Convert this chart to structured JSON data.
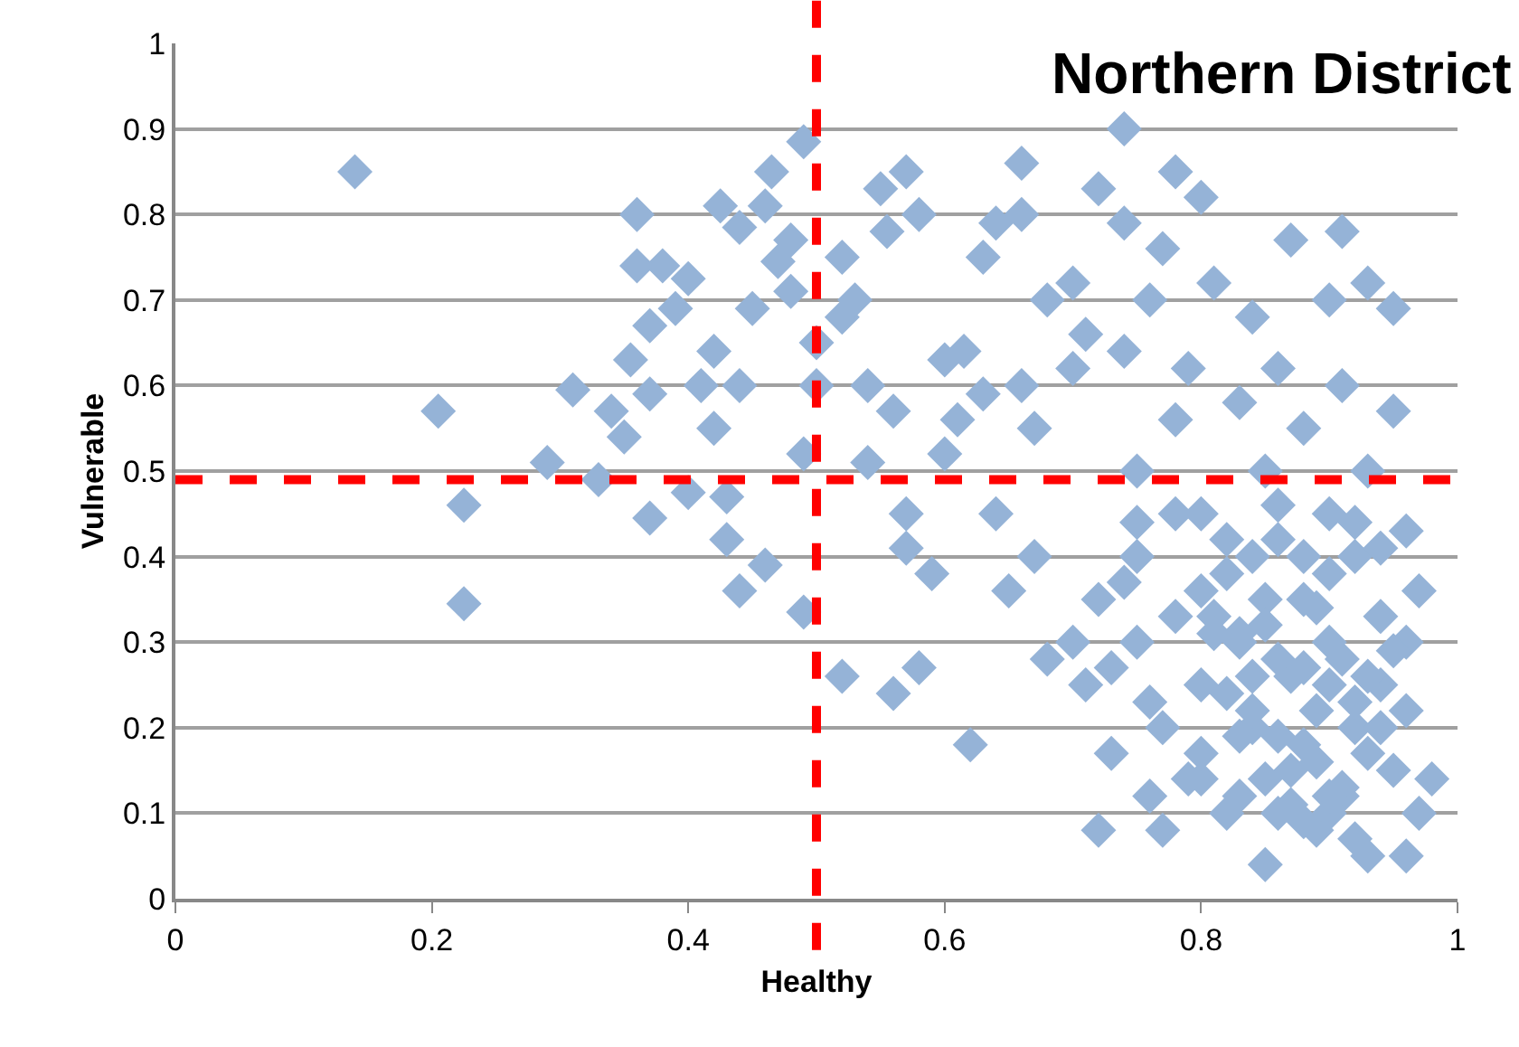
{
  "chart_data": {
    "type": "scatter",
    "title": "Northern District",
    "xlabel": "Healthy",
    "ylabel": "Vulnerable",
    "xlim": [
      0,
      1
    ],
    "ylim": [
      0,
      1
    ],
    "xticks": [
      0,
      0.2,
      0.4,
      0.6,
      0.8,
      1
    ],
    "yticks": [
      0,
      0.1,
      0.2,
      0.3,
      0.4,
      0.5,
      0.6,
      0.7,
      0.8,
      0.9,
      1
    ],
    "grid": "y",
    "marker": "diamond",
    "ref_lines": [
      {
        "axis": "x",
        "value": 0.5,
        "color": "#ff0000",
        "line_style": "dashed"
      },
      {
        "axis": "y",
        "value": 0.49,
        "color": "#ff0000",
        "line_style": "dashed"
      }
    ],
    "series": [
      {
        "color": "#95b3d7",
        "x": [
          0.14,
          0.205,
          0.225,
          0.225,
          0.29,
          0.31,
          0.33,
          0.34,
          0.35,
          0.355,
          0.36,
          0.36,
          0.37,
          0.37,
          0.37,
          0.38,
          0.39,
          0.4,
          0.4,
          0.41,
          0.42,
          0.42,
          0.425,
          0.43,
          0.43,
          0.44,
          0.44,
          0.44,
          0.45,
          0.46,
          0.46,
          0.465,
          0.47,
          0.48,
          0.48,
          0.49,
          0.49,
          0.49,
          0.5,
          0.5,
          0.52,
          0.52,
          0.52,
          0.53,
          0.54,
          0.54,
          0.55,
          0.555,
          0.56,
          0.56,
          0.57,
          0.57,
          0.57,
          0.58,
          0.58,
          0.59,
          0.6,
          0.6,
          0.61,
          0.615,
          0.62,
          0.63,
          0.63,
          0.64,
          0.64,
          0.65,
          0.66,
          0.66,
          0.66,
          0.67,
          0.67,
          0.68,
          0.68,
          0.7,
          0.7,
          0.7,
          0.71,
          0.71,
          0.72,
          0.72,
          0.73,
          0.74,
          0.74,
          0.74,
          0.75,
          0.75,
          0.75,
          0.76,
          0.76,
          0.77,
          0.77,
          0.78,
          0.78,
          0.78,
          0.79,
          0.8,
          0.8,
          0.8,
          0.8,
          0.81,
          0.82,
          0.82,
          0.83,
          0.83,
          0.84,
          0.84,
          0.85,
          0.85,
          0.86,
          0.86,
          0.86,
          0.87,
          0.87,
          0.88,
          0.88,
          0.89,
          0.89,
          0.9,
          0.9,
          0.9,
          0.91,
          0.91,
          0.91,
          0.92,
          0.92,
          0.93,
          0.93,
          0.93,
          0.94,
          0.94,
          0.95,
          0.95,
          0.95,
          0.96,
          0.96,
          0.96,
          0.97,
          0.97,
          0.98,
          0.96,
          0.85,
          0.78,
          0.83,
          0.88,
          0.9,
          0.8,
          0.76,
          0.82,
          0.84,
          0.86,
          0.88,
          0.9,
          0.92,
          0.94,
          0.81,
          0.83,
          0.85,
          0.87,
          0.89,
          0.91,
          0.93,
          0.95,
          0.82,
          0.84,
          0.86,
          0.88,
          0.9,
          0.92,
          0.94,
          0.8,
          0.83,
          0.85,
          0.87,
          0.89,
          0.91,
          0.93,
          0.79,
          0.81,
          0.84,
          0.86,
          0.88,
          0.9,
          0.92,
          0.77,
          0.74,
          0.72,
          0.73,
          0.75
        ],
        "values": [
          0.85,
          0.57,
          0.46,
          0.345,
          0.51,
          0.595,
          0.49,
          0.57,
          0.54,
          0.63,
          0.74,
          0.8,
          0.67,
          0.59,
          0.445,
          0.74,
          0.69,
          0.725,
          0.475,
          0.6,
          0.64,
          0.55,
          0.81,
          0.47,
          0.42,
          0.785,
          0.6,
          0.36,
          0.69,
          0.39,
          0.81,
          0.85,
          0.745,
          0.77,
          0.71,
          0.885,
          0.335,
          0.52,
          0.65,
          0.6,
          0.75,
          0.26,
          0.68,
          0.7,
          0.51,
          0.6,
          0.83,
          0.78,
          0.57,
          0.24,
          0.85,
          0.45,
          0.41,
          0.8,
          0.27,
          0.38,
          0.63,
          0.52,
          0.56,
          0.64,
          0.18,
          0.75,
          0.59,
          0.79,
          0.45,
          0.36,
          0.86,
          0.8,
          0.6,
          0.55,
          0.4,
          0.7,
          0.28,
          0.72,
          0.62,
          0.3,
          0.66,
          0.25,
          0.08,
          0.83,
          0.17,
          0.9,
          0.79,
          0.64,
          0.5,
          0.4,
          0.3,
          0.12,
          0.7,
          0.76,
          0.2,
          0.85,
          0.56,
          0.33,
          0.62,
          0.82,
          0.45,
          0.25,
          0.14,
          0.72,
          0.38,
          0.1,
          0.58,
          0.3,
          0.68,
          0.2,
          0.04,
          0.5,
          0.42,
          0.62,
          0.28,
          0.77,
          0.15,
          0.35,
          0.55,
          0.22,
          0.08,
          0.45,
          0.7,
          0.3,
          0.78,
          0.6,
          0.12,
          0.4,
          0.2,
          0.72,
          0.5,
          0.05,
          0.33,
          0.25,
          0.69,
          0.57,
          0.15,
          0.43,
          0.05,
          0.3,
          0.36,
          0.1,
          0.14,
          0.22,
          0.35,
          0.45,
          0.12,
          0.18,
          0.1,
          0.36,
          0.23,
          0.42,
          0.4,
          0.46,
          0.4,
          0.38,
          0.44,
          0.41,
          0.33,
          0.31,
          0.32,
          0.26,
          0.34,
          0.28,
          0.26,
          0.29,
          0.24,
          0.26,
          0.19,
          0.27,
          0.25,
          0.23,
          0.2,
          0.17,
          0.19,
          0.14,
          0.11,
          0.16,
          0.13,
          0.17,
          0.14,
          0.31,
          0.22,
          0.1,
          0.09,
          0.12,
          0.07,
          0.08,
          0.37,
          0.35,
          0.27,
          0.44
        ]
      }
    ]
  }
}
